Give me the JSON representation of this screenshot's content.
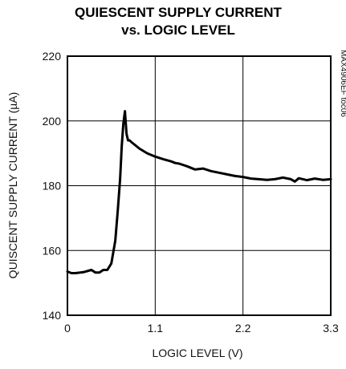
{
  "chart_data": {
    "type": "line",
    "title": "QUIESCENT SUPPLY CURRENT",
    "subtitle": "vs. LOGIC LEVEL",
    "xlabel": "LOGIC LEVEL (V)",
    "ylabel": "QUISCENT SUPPLY CURRENT (µA)",
    "figure_id": "MAX4906EF toc06",
    "xlim": [
      0,
      3.3
    ],
    "ylim": [
      140,
      220
    ],
    "xticks": [
      0,
      1.1,
      2.2,
      3.3
    ],
    "xtick_labels": [
      "0",
      "1.1",
      "2.2",
      "3.3"
    ],
    "yticks": [
      140,
      160,
      180,
      200,
      220
    ],
    "ytick_labels": [
      "140",
      "160",
      "180",
      "200",
      "220"
    ],
    "grid": true,
    "series": [
      {
        "color": "#000000",
        "x": [
          0.0,
          0.05,
          0.1,
          0.2,
          0.3,
          0.35,
          0.4,
          0.45,
          0.5,
          0.55,
          0.6,
          0.63,
          0.66,
          0.68,
          0.7,
          0.72,
          0.74,
          0.76,
          0.78,
          0.8,
          0.85,
          0.9,
          1.0,
          1.1,
          1.2,
          1.3,
          1.35,
          1.4,
          1.5,
          1.6,
          1.7,
          1.8,
          1.9,
          2.0,
          2.1,
          2.2,
          2.3,
          2.4,
          2.5,
          2.6,
          2.7,
          2.8,
          2.85,
          2.9,
          3.0,
          3.1,
          3.2,
          3.3
        ],
        "y": [
          153.5,
          153.0,
          153.0,
          153.3,
          154.0,
          153.2,
          153.2,
          154.0,
          154.0,
          156.0,
          163.0,
          172.0,
          182.0,
          192.0,
          199.0,
          203.0,
          196.0,
          194.0,
          194.0,
          193.5,
          192.5,
          191.5,
          190.0,
          189.0,
          188.2,
          187.5,
          187.0,
          186.8,
          186.0,
          185.0,
          185.3,
          184.5,
          184.0,
          183.5,
          183.0,
          182.7,
          182.2,
          182.0,
          181.8,
          182.0,
          182.5,
          182.0,
          181.3,
          182.3,
          181.7,
          182.2,
          181.8,
          182.0
        ]
      }
    ]
  }
}
